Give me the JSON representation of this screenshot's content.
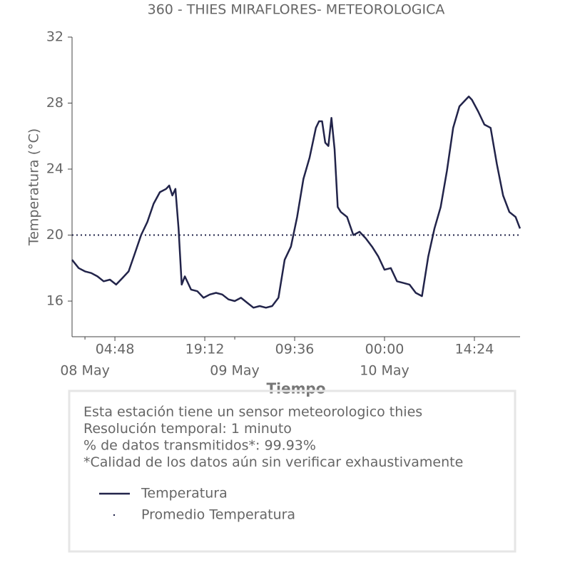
{
  "chart_data": {
    "type": "line",
    "title": "360 - THIES MIRAFLORES- METEOROLOGICA",
    "ylabel": "Temperatura (°C)",
    "xlabel": "Tiempo",
    "x": [
      "07 May 21:56",
      "07 May 23:00",
      "08 May 00:00",
      "08 May 01:00",
      "08 May 02:00",
      "08 May 03:00",
      "08 May 04:00",
      "08 May 05:00",
      "08 May 06:00",
      "08 May 07:00",
      "08 May 08:00",
      "08 May 09:00",
      "08 May 10:00",
      "08 May 11:00",
      "08 May 12:00",
      "08 May 13:00",
      "08 May 13:30",
      "08 May 14:00",
      "08 May 14:30",
      "08 May 15:00",
      "08 May 15:30",
      "08 May 16:00",
      "08 May 17:00",
      "08 May 18:00",
      "08 May 19:00",
      "08 May 20:00",
      "08 May 21:00",
      "08 May 22:00",
      "08 May 23:00",
      "09 May 00:00",
      "09 May 01:00",
      "09 May 02:00",
      "09 May 03:00",
      "09 May 04:00",
      "09 May 05:00",
      "09 May 06:00",
      "09 May 07:00",
      "09 May 08:00",
      "09 May 09:00",
      "09 May 10:00",
      "09 May 11:00",
      "09 May 12:00",
      "09 May 13:00",
      "09 May 13:30",
      "09 May 14:00",
      "09 May 14:30",
      "09 May 15:00",
      "09 May 15:30",
      "09 May 16:00",
      "09 May 16:30",
      "09 May 17:00",
      "09 May 18:00",
      "09 May 19:00",
      "09 May 20:00",
      "09 May 21:00",
      "09 May 22:00",
      "09 May 23:00",
      "10 May 00:00",
      "10 May 01:00",
      "10 May 02:00",
      "10 May 03:00",
      "10 May 04:00",
      "10 May 05:00",
      "10 May 06:00",
      "10 May 07:00",
      "10 May 08:00",
      "10 May 09:00",
      "10 May 10:00",
      "10 May 11:00",
      "10 May 12:00",
      "10 May 13:00",
      "10 May 13:30",
      "10 May 14:00",
      "10 May 15:00",
      "10 May 16:00",
      "10 May 17:00",
      "10 May 18:00",
      "10 May 19:00",
      "10 May 20:00",
      "10 May 21:00",
      "10 May 21:42"
    ],
    "series": [
      {
        "name": "Temperatura",
        "color": "#22244a",
        "values": [
          18.5,
          18.0,
          17.8,
          17.7,
          17.5,
          17.2,
          17.3,
          17.0,
          17.4,
          17.8,
          18.9,
          20.0,
          20.8,
          21.9,
          22.6,
          22.8,
          23.0,
          22.4,
          22.8,
          20.4,
          17.0,
          17.5,
          16.7,
          16.6,
          16.2,
          16.4,
          16.5,
          16.4,
          16.1,
          16.0,
          16.2,
          15.9,
          15.6,
          15.7,
          15.6,
          15.7,
          16.2,
          18.5,
          19.3,
          21.1,
          23.4,
          24.7,
          26.5,
          26.9,
          26.9,
          25.6,
          25.4,
          27.1,
          25.2,
          21.7,
          21.4,
          21.1,
          20.0,
          20.2,
          19.8,
          19.3,
          18.7,
          17.9,
          18.0,
          17.2,
          17.1,
          17.0,
          16.5,
          16.3,
          18.7,
          20.4,
          21.7,
          23.9,
          26.5,
          27.8,
          28.2,
          28.4,
          28.2,
          27.5,
          26.7,
          26.5,
          24.3,
          22.4,
          21.4,
          21.1,
          20.4
        ]
      }
    ],
    "average": {
      "name": "Promedio Temperatura",
      "value": 20.0,
      "color": "#22244a"
    },
    "xlim": [
      "07 May 21:56",
      "10 May 21:43"
    ],
    "xticks": [
      {
        "value": "08 May 04:48",
        "label": "04:48"
      },
      {
        "value": "08 May 19:12",
        "label": "19:12"
      },
      {
        "value": "09 May 09:36",
        "label": "09:36"
      },
      {
        "value": "10 May 00:00",
        "label": "00:00"
      },
      {
        "value": "10 May 14:24",
        "label": "14:24"
      }
    ],
    "xticks_minor": [
      {
        "value": "08 May 00:00",
        "label": "08 May"
      },
      {
        "value": "09 May 00:00",
        "label": "09 May"
      },
      {
        "value": "10 May 00:00",
        "label": "10 May"
      }
    ],
    "ylim": [
      13.84,
      32
    ],
    "yticks": [
      16,
      20,
      24,
      28,
      32
    ],
    "notes": [
      "Esta estación tiene un sensor meteorologico thies",
      "Resolución temporal: 1 minuto",
      "% de datos transmitidos*: 99.93%",
      "*Calidad de los datos aún sin verificar exhaustivamente"
    ]
  }
}
